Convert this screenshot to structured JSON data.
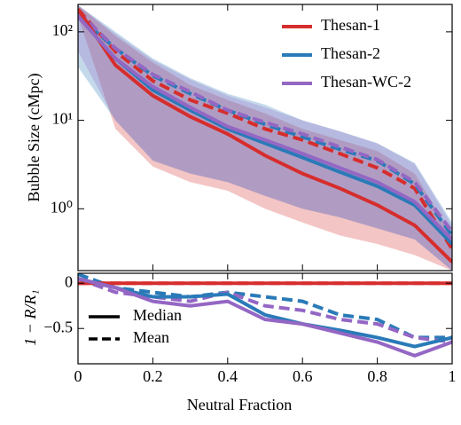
{
  "chart_data": [
    {
      "type": "line",
      "ylabel": "Bubble Size (cMpc)",
      "ylog": true,
      "x": [
        0,
        0.1,
        0.2,
        0.3,
        0.4,
        0.5,
        0.6,
        0.7,
        0.8,
        0.9,
        1
      ],
      "xlim": [
        0,
        1
      ],
      "ylim": [
        0.2,
        204
      ],
      "yticks": [
        {
          "value": 1,
          "label": "10⁰"
        },
        {
          "value": 10,
          "label": "10¹"
        },
        {
          "value": 100,
          "label": "10²"
        }
      ],
      "legend": "upper right",
      "series": [
        {
          "name": "Thesan-1",
          "color": "#d62d2d",
          "median": [
            180,
            42,
            19,
            11,
            7,
            4,
            2.5,
            1.7,
            1.1,
            0.65,
            0.25
          ],
          "mean": [
            180,
            60,
            28,
            17,
            12,
            8,
            6,
            4.2,
            2.9,
            1.7,
            0.35
          ],
          "lower": [
            150,
            8,
            3,
            2,
            1.6,
            1,
            0.7,
            0.5,
            0.4,
            0.3,
            0.2
          ],
          "upper": [
            200,
            90,
            45,
            25,
            17,
            12,
            8,
            6,
            4.5,
            2.5,
            0.5
          ]
        },
        {
          "name": "Thesan-2",
          "color": "#2a7ab8",
          "median": [
            150,
            50,
            22,
            13,
            8,
            5.5,
            3.8,
            2.6,
            1.8,
            1.1,
            0.4
          ],
          "mean": [
            150,
            65,
            32,
            20,
            13,
            9,
            6.5,
            4.7,
            3.5,
            1.9,
            0.5
          ],
          "lower": [
            40,
            10,
            3.5,
            2.5,
            2,
            1.4,
            1,
            0.8,
            0.6,
            0.45,
            0.2
          ],
          "upper": [
            200,
            100,
            50,
            30,
            20,
            15,
            10,
            7.5,
            5.5,
            3.3,
            0.7
          ]
        },
        {
          "name": "Thesan-WC-2",
          "color": "#9467c4",
          "median": [
            150,
            50,
            24,
            14,
            8.5,
            6,
            4.2,
            2.9,
            2,
            1.2,
            0.45
          ],
          "mean": [
            170,
            65,
            33,
            21,
            13,
            9.5,
            7,
            5,
            3.6,
            2,
            0.55
          ],
          "lower": [
            60,
            10,
            3.5,
            2.5,
            2,
            1.4,
            1,
            0.8,
            0.6,
            0.45,
            0.2
          ],
          "upper": [
            200,
            95,
            48,
            29,
            19,
            14,
            10,
            7.5,
            5.5,
            3.2,
            0.65
          ]
        }
      ]
    },
    {
      "type": "line",
      "xlabel": "Neutral Fraction",
      "ylabel": "1 − R/R₁",
      "x": [
        0,
        0.1,
        0.2,
        0.3,
        0.4,
        0.5,
        0.6,
        0.7,
        0.8,
        0.9,
        1
      ],
      "xlim": [
        0,
        1
      ],
      "ylim": [
        -0.89,
        0.11
      ],
      "xticks": [
        0,
        0.2,
        0.4,
        0.6,
        0.8,
        1
      ],
      "yticks": [
        {
          "value": -0.5,
          "label": "−0.5"
        },
        0
      ],
      "style_legend": [
        "Median",
        "Mean"
      ],
      "series": [
        {
          "color": "#d62d2d",
          "median": [
            0,
            0,
            0,
            0,
            0,
            0,
            0,
            0,
            0,
            0,
            0
          ],
          "mean": [
            0,
            0,
            0,
            0,
            0,
            0,
            0,
            0,
            0,
            0,
            0
          ]
        },
        {
          "color": "#2a7ab8",
          "median": [
            0.05,
            -0.05,
            -0.15,
            -0.15,
            -0.12,
            -0.35,
            -0.45,
            -0.52,
            -0.6,
            -0.7,
            -0.6
          ],
          "mean": [
            0.1,
            -0.05,
            -0.1,
            -0.15,
            -0.1,
            -0.15,
            -0.2,
            -0.35,
            -0.4,
            -0.6,
            -0.6
          ]
        },
        {
          "color": "#9467c4",
          "median": [
            0.05,
            -0.05,
            -0.2,
            -0.25,
            -0.2,
            -0.4,
            -0.45,
            -0.55,
            -0.65,
            -0.8,
            -0.65
          ],
          "mean": [
            0.05,
            -0.1,
            -0.15,
            -0.2,
            -0.1,
            -0.25,
            -0.3,
            -0.4,
            -0.45,
            -0.6,
            -0.65
          ]
        }
      ]
    }
  ]
}
